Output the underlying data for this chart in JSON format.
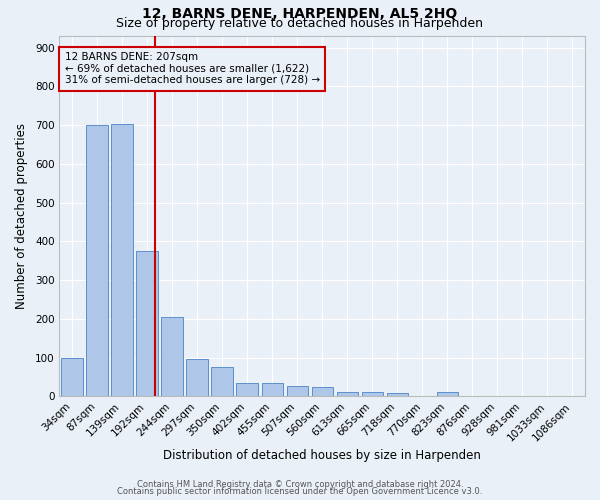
{
  "title": "12, BARNS DENE, HARPENDEN, AL5 2HQ",
  "subtitle": "Size of property relative to detached houses in Harpenden",
  "xlabel": "Distribution of detached houses by size in Harpenden",
  "ylabel": "Number of detached properties",
  "categories": [
    "34sqm",
    "87sqm",
    "139sqm",
    "192sqm",
    "244sqm",
    "297sqm",
    "350sqm",
    "402sqm",
    "455sqm",
    "507sqm",
    "560sqm",
    "613sqm",
    "665sqm",
    "718sqm",
    "770sqm",
    "823sqm",
    "876sqm",
    "928sqm",
    "981sqm",
    "1033sqm",
    "1086sqm"
  ],
  "values": [
    100,
    700,
    703,
    375,
    205,
    97,
    75,
    33,
    33,
    27,
    23,
    10,
    10,
    8,
    0,
    10,
    0,
    0,
    0,
    0,
    0
  ],
  "bar_color": "#aec6e8",
  "bar_edge_color": "#5b8fcc",
  "background_color": "#eaf0f8",
  "grid_color": "#ffffff",
  "vline_x": 3.32,
  "vline_color": "#cc0000",
  "annotation_text": "12 BARNS DENE: 207sqm\n← 69% of detached houses are smaller (1,622)\n31% of semi-detached houses are larger (728) →",
  "annotation_box_color": "#cc0000",
  "ylim": [
    0,
    930
  ],
  "yticks": [
    0,
    100,
    200,
    300,
    400,
    500,
    600,
    700,
    800,
    900
  ],
  "footnote1": "Contains HM Land Registry data © Crown copyright and database right 2024.",
  "footnote2": "Contains public sector information licensed under the Open Government Licence v3.0.",
  "title_fontsize": 10,
  "subtitle_fontsize": 9,
  "label_fontsize": 8.5,
  "tick_fontsize": 7.5,
  "annot_fontsize": 7.5
}
